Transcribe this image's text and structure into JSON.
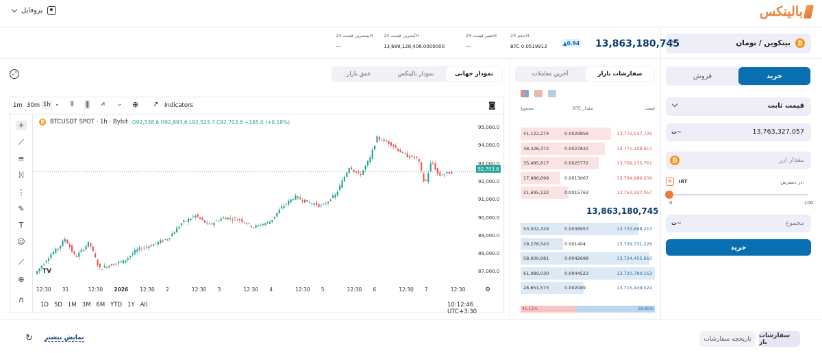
{
  "header": {
    "logo_text": "بالینکس",
    "profile_label": "پروفایل"
  },
  "market": {
    "pair": "بیتکوین / تومان",
    "price": "13,863,180,745",
    "change": "0.94",
    "stats": [
      {
        "label": "حجم 24H",
        "value": "BTC 0.0519913"
      },
      {
        "label": "تغییر قیمت 24H",
        "value": "---"
      },
      {
        "label": "کمترین قیمت 24H",
        "value": "13,689,128,406.0000000"
      },
      {
        "label": "بیشترین قیمت 24H",
        "value": "---"
      }
    ]
  },
  "chart_tabs": [
    "نمودار جهانی",
    "نمودار بالینکس",
    "عمق بازار"
  ],
  "orderbook": {
    "tabs": [
      "سفارشات بازار",
      "آخرین معاملات"
    ],
    "headers": {
      "price": "قیمت",
      "amount": "مقدار",
      "amount_unit": "BTC",
      "total": "مجموع"
    },
    "asks": [
      {
        "price": "13,773,537,725",
        "amount": "0.0029856",
        "total": "41,122,274"
      },
      {
        "price": "13,771,108,617",
        "amount": "0.0027831",
        "total": "38,326,372"
      },
      {
        "price": "13,769,135,761",
        "amount": "0.0025772",
        "total": "35,485,817"
      },
      {
        "price": "13,764,980,039",
        "amount": "0.0013067",
        "total": "17,986,699"
      },
      {
        "price": "13,763,327,057",
        "amount": "0.0015763",
        "total": "21,695,132"
      }
    ],
    "mid_price": "13,863,180,745",
    "bids": [
      {
        "price": "13,733,688,213",
        "amount": "0.0038957",
        "total": "53,502,329"
      },
      {
        "price": "13,729,731,229",
        "amount": "0.001404",
        "total": "19,276,543"
      },
      {
        "price": "13,724,455,810",
        "amount": "0.0042698",
        "total": "58,600,681"
      },
      {
        "price": "13,720,780,163",
        "amount": "0.0044523",
        "total": "61,089,030"
      },
      {
        "price": "13,715,449,024",
        "amount": "0.002089",
        "total": "28,651,573"
      }
    ],
    "ratio": {
      "buy": "58.85%",
      "sell": "41.15%"
    }
  },
  "trade": {
    "buy_tab": "خرید",
    "sell_tab": "فروش",
    "order_type": "قیمت ثابت",
    "price_value": "13,763,327,057",
    "amount_placeholder": "مقدار ارز",
    "available_label": "در دسترس:",
    "currency": "IRT",
    "slider_min": "0",
    "slider_max": "100",
    "total_placeholder": "مجموع",
    "submit": "خرید",
    "slider_level": 0
  },
  "tv": {
    "intervals": [
      "1m",
      "30m",
      "1h"
    ],
    "indicators": "Indicators",
    "symbol": "BTCUSDT SPOT · 1h · Bybit",
    "ohlc": {
      "o": "92,538.6",
      "h": "92,893.6",
      "l": "92,523.7",
      "c": "92,703.6",
      "chg": "+165.0 (+0.18%)"
    },
    "last_price": "92,703.6",
    "y_ticks": [
      "95,000.0",
      "94,000.0",
      "93,000.0",
      "92,000.0",
      "91,000.0",
      "90,000.0",
      "89,000.0",
      "88,000.0",
      "87,000.0"
    ],
    "x_ticks": [
      "12:30",
      "31",
      "12:30",
      "2026",
      "12:30",
      "2",
      "12:30",
      "3",
      "12:30",
      "4",
      "12:30",
      "5",
      "12:30",
      "6",
      "12:30",
      "7",
      "12:30"
    ],
    "ranges": [
      "1D",
      "5D",
      "1M",
      "3M",
      "6M",
      "YTD",
      "1Y",
      "All"
    ],
    "time": "10:12:46 UTC+3:30"
  },
  "footer": {
    "open_orders": "سفارشات باز",
    "order_history": "تاریخچه سفارشات",
    "show_more": "نمایش بیشتر"
  },
  "colors": {
    "primary": "#0a6fb0",
    "accent": "#ef7a3c",
    "up": "#26a69a",
    "down": "#ef5350"
  }
}
